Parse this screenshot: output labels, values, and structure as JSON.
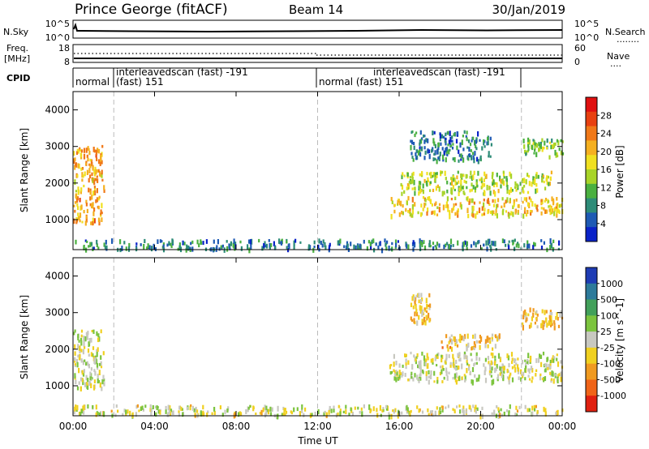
{
  "header": {
    "station": "Prince George (fitACF)",
    "beam": "Beam 14",
    "date": "30/Jan/2019"
  },
  "noise_panel": {
    "left_label": "N.Sky",
    "right_label": "N.Search",
    "left_ticks": [
      "10^5",
      "10^0"
    ],
    "right_ticks": [
      "10^5",
      "10^0"
    ],
    "legend_line": "........"
  },
  "freq_panel": {
    "left_label_1": "Freq.",
    "left_label_2": "[MHz]",
    "right_label": "Nave",
    "left_ticks": [
      "18",
      "8"
    ],
    "right_ticks": [
      "60",
      "0"
    ],
    "legend_line": "...."
  },
  "cpid_panel": {
    "label": "CPID",
    "segments": [
      {
        "name": "normal",
        "id": ""
      },
      {
        "name": "interleavedscan (fast) -191",
        "id": "(fast) 151"
      },
      {
        "name": "normal (fast) 151",
        "id": ""
      },
      {
        "name": "interleavedscan (fast) -191",
        "id": ""
      }
    ]
  },
  "axes": {
    "time_ticks": [
      "00:00",
      "04:00",
      "08:00",
      "12:00",
      "16:00",
      "20:00",
      "00:00"
    ],
    "xlabel": "Time UT",
    "ylabel": "Slant Range [km]",
    "range_ticks": [
      "1000",
      "2000",
      "3000",
      "4000"
    ]
  },
  "power_colorbar": {
    "label": "Power [dB]",
    "ticks": [
      "4",
      "8",
      "12",
      "16",
      "20",
      "24",
      "28"
    ],
    "colors": [
      "#0a22c8",
      "#1e5ab4",
      "#2e8c78",
      "#4ab040",
      "#a8d428",
      "#f0e020",
      "#f5b020",
      "#f07818",
      "#e84010",
      "#e01010"
    ]
  },
  "velocity_colorbar": {
    "label": "Velocity [m s^-1]",
    "ticks": [
      "1000",
      "500",
      "100",
      "25",
      "-25",
      "-100",
      "-500",
      "-1000"
    ],
    "colors": [
      "#1e3cb4",
      "#2d7a9a",
      "#42a05a",
      "#7cc43e",
      "#c8c8c0",
      "#f0d020",
      "#f09a20",
      "#f06418",
      "#e02010"
    ]
  },
  "chart_data": {
    "type": "heatmap",
    "title": "Prince George (fitACF) Beam 14 30/Jan/2019",
    "xlabel": "Time UT",
    "ylabel": "Slant Range [km]",
    "xlim": [
      "00:00",
      "24:00"
    ],
    "ylim": [
      180,
      4500
    ],
    "mode_change_times": [
      "02:00",
      "12:00",
      "22:00"
    ],
    "panels": [
      {
        "name": "Power",
        "unit": "dB",
        "colorbar_range": [
          0,
          30
        ],
        "echo_regions": [
          {
            "time": [
              "00:00",
              "01:30"
            ],
            "range_km": [
              900,
              3000
            ],
            "value": 20
          },
          {
            "time": [
              "00:00",
              "24:00"
            ],
            "range_km": [
              180,
              450
            ],
            "value": 6
          },
          {
            "time": [
              "15:30",
              "24:00"
            ],
            "range_km": [
              1100,
              1600
            ],
            "value": 18
          },
          {
            "time": [
              "16:00",
              "23:30"
            ],
            "range_km": [
              1700,
              2300
            ],
            "value": 14
          },
          {
            "time": [
              "16:30",
              "20:30"
            ],
            "range_km": [
              2600,
              3400
            ],
            "value": 6
          },
          {
            "time": [
              "22:00",
              "24:00"
            ],
            "range_km": [
              2700,
              3200
            ],
            "value": 12
          }
        ]
      },
      {
        "name": "Velocity",
        "unit": "m s^-1",
        "colorbar_range": [
          -1000,
          1000
        ],
        "echo_regions": [
          {
            "time": [
              "00:00",
              "01:30"
            ],
            "range_km": [
              900,
              2500
            ],
            "value": 0
          },
          {
            "time": [
              "00:00",
              "24:00"
            ],
            "range_km": [
              180,
              450
            ],
            "value": -60
          },
          {
            "time": [
              "15:30",
              "24:00"
            ],
            "range_km": [
              1100,
              1900
            ],
            "value": 0
          },
          {
            "time": [
              "18:00",
              "21:00"
            ],
            "range_km": [
              2000,
              2400
            ],
            "value": -300
          },
          {
            "time": [
              "16:30",
              "17:30"
            ],
            "range_km": [
              2700,
              3500
            ],
            "value": -300
          },
          {
            "time": [
              "22:00",
              "24:00"
            ],
            "range_km": [
              2600,
              3100
            ],
            "value": -300
          }
        ]
      }
    ]
  }
}
